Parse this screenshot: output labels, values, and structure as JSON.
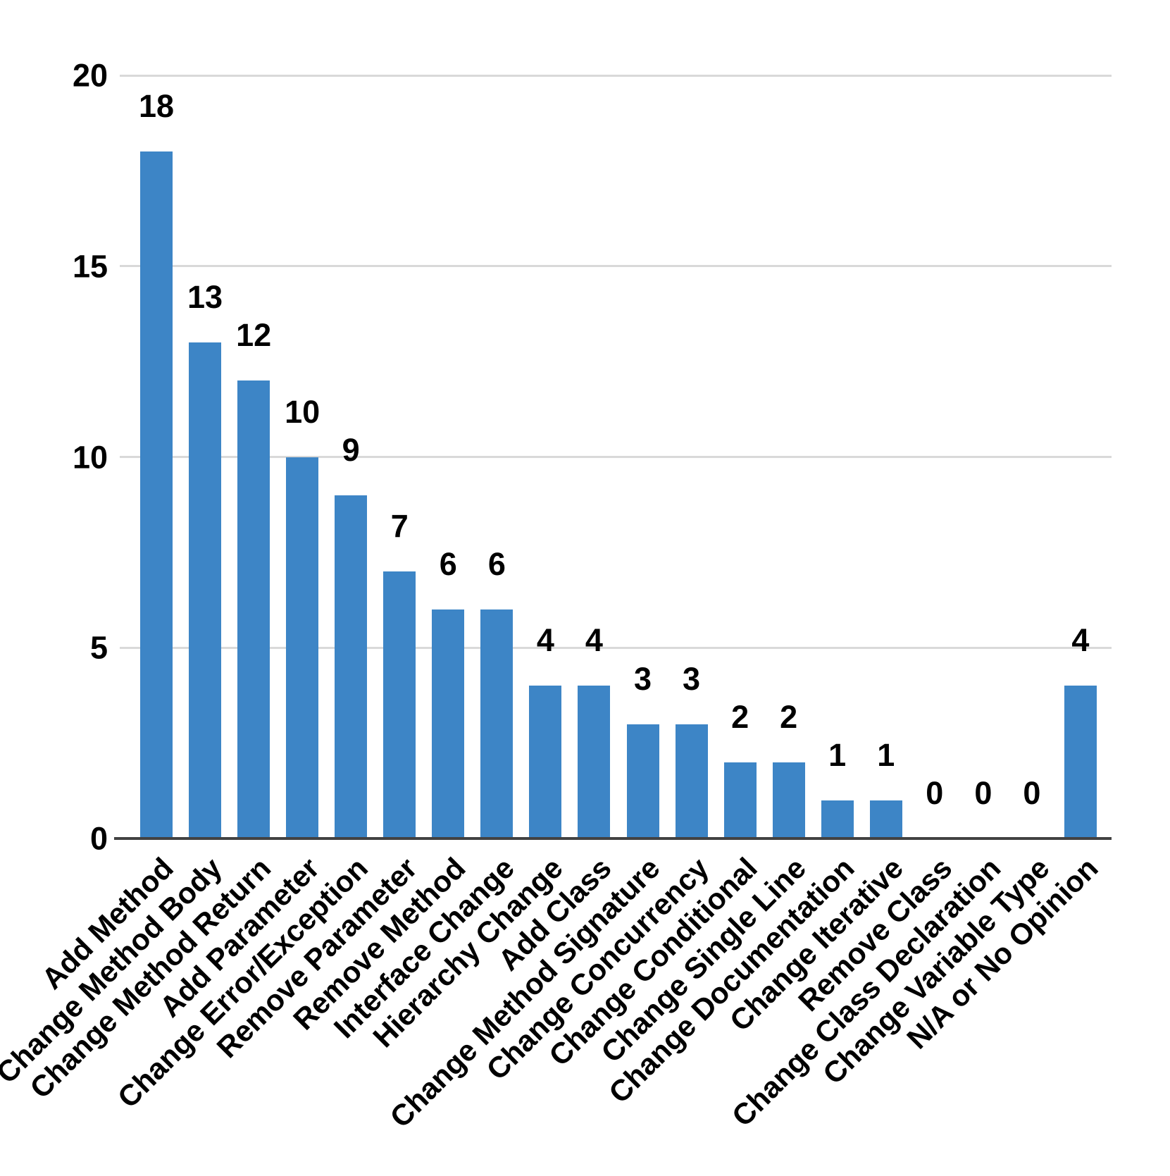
{
  "chart_data": {
    "type": "bar",
    "title": "",
    "xlabel": "",
    "ylabel": "",
    "categories": [
      "Add Method",
      "Change Method Body",
      "Change Method Return",
      "Add Parameter",
      "Change Error/Exception",
      "Remove Parameter",
      "Remove Method",
      "Interface Change",
      "Hierarchy Change",
      "Add Class",
      "Change Method Signature",
      "Change Concurrency",
      "Change Conditional",
      "Change Single Line",
      "Change Documentation",
      "Change Iterative",
      "Remove Class",
      "Change Class Declaration",
      "Change Variable Type",
      "N/A or No Opinion"
    ],
    "values": [
      18,
      13,
      12,
      10,
      9,
      7,
      6,
      6,
      4,
      4,
      3,
      3,
      2,
      2,
      1,
      1,
      0,
      0,
      0,
      4
    ],
    "ylim": [
      0,
      20
    ],
    "yticks": [
      0,
      5,
      10,
      15,
      20
    ],
    "grid": true,
    "legend_position": "none",
    "value_labels_shown": true,
    "bar_color": "#3d85c6",
    "gridline_color": "#d9d9d9",
    "axis_color": "#424242",
    "text_color": "#000000"
  }
}
